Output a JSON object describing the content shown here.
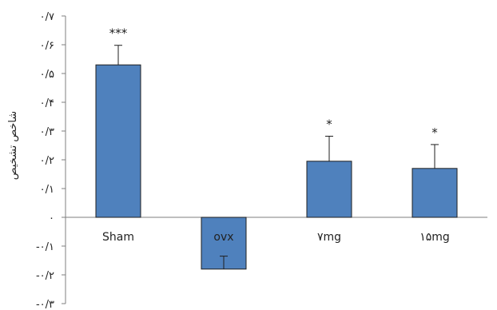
{
  "chart_data": {
    "type": "bar",
    "title": "",
    "xlabel": "",
    "ylabel": "شاخص تشخیص",
    "categories": [
      "Sham",
      "ovx",
      "۷mg",
      "۱۵mg"
    ],
    "values": [
      0.53,
      -0.18,
      0.195,
      0.17
    ],
    "errors": [
      0.068,
      0.045,
      0.087,
      0.083
    ],
    "significance": [
      "***",
      "",
      "*",
      "*"
    ],
    "ylim": [
      -0.3,
      0.7
    ],
    "yticks": [
      0.7,
      0.6,
      0.5,
      0.4,
      0.3,
      0.2,
      0.1,
      0,
      -0.1,
      -0.2,
      -0.3
    ],
    "ytick_labels": [
      "۰/۷",
      "۰/۶",
      "۰/۵",
      "۰/۴",
      "۰/۳",
      "۰/۲",
      "۰/۱",
      "۰",
      "-۰/۱",
      "-۰/۲",
      "-۰/۳"
    ],
    "bar_color": "#4F81BD",
    "bar_edge_color": "#1F1F1F",
    "grid": false,
    "legend": "none"
  }
}
